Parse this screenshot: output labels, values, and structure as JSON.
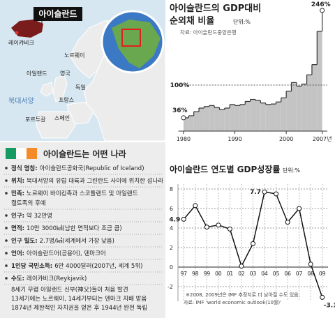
{
  "map": {
    "title": "아이슬란드",
    "labels": [
      "레이캬비크",
      "노르웨이",
      "아일랜드",
      "영국",
      "독일",
      "북대서양",
      "프랑스",
      "포르투갈",
      "스페인"
    ]
  },
  "info": {
    "heading": "아이슬란드는 어떤 나라",
    "items": [
      {
        "label": "정식 명칭:",
        "text": [
          "아이슬란드공화국(Republic of Iceland)"
        ]
      },
      {
        "label": "위치:",
        "text": [
          "북대서양의 유럽 대륙과 그린란드 사이에 위치한 섬나라"
        ]
      },
      {
        "label": "민족:",
        "text": [
          "노르웨이 바이킹족과 스코틀랜드 및 아일랜드",
          "켈트족의 후예"
        ]
      },
      {
        "label": "인구:",
        "text": [
          "약 32만명"
        ]
      },
      {
        "label": "면적:",
        "text": [
          "10만 3000㎢(남한 면적보다 조금 큼)"
        ]
      },
      {
        "label": "인구 밀도:",
        "text": [
          "2.7명/㎢(세계에서 가장 낮음)"
        ]
      },
      {
        "label": "언어:",
        "text": [
          "아이슬란드어(공용어), 덴마크어"
        ]
      },
      {
        "label": "1인당 국민소득:",
        "text": [
          "6만 4000달러(2007년, 세계 5위)"
        ]
      },
      {
        "label": "수도:",
        "text": [
          "레이캬비크(Reykjavik)"
        ]
      }
    ],
    "history": [
      "8세기 무렵 아일랜드 신부(神父)들이 처음 발견",
      "13세기에는 노르웨이, 14세기부터는 덴마크 지배 받음",
      "1874년 제한적인 자치권을 얻은 후 1944년 완전 독립"
    ]
  },
  "chart_data": [
    {
      "type": "step-area",
      "title": [
        "아이슬란드의 GDP대비",
        "순외채 비율"
      ],
      "unit": "단위:%",
      "source": "자료: 아이슬란드중앙은행",
      "x": [
        1980,
        1981,
        1982,
        1983,
        1984,
        1985,
        1986,
        1987,
        1988,
        1989,
        1990,
        1991,
        1992,
        1993,
        1994,
        1995,
        1996,
        1997,
        1998,
        1999,
        2000,
        2001,
        2002,
        2003,
        2004,
        2005,
        2006,
        2007
      ],
      "values": [
        36,
        40,
        48,
        55,
        58,
        60,
        56,
        52,
        55,
        62,
        60,
        62,
        68,
        72,
        70,
        65,
        62,
        63,
        67,
        75,
        88,
        105,
        98,
        102,
        120,
        140,
        205,
        246
      ],
      "color": "#c4c4c4",
      "xlim": [
        1979,
        2008
      ],
      "xticks": [
        1980,
        1990,
        2000,
        {
          "value": 2007,
          "label": "2007년"
        }
      ],
      "ylim": [
        10,
        250
      ],
      "annotations": [
        {
          "x": 1980,
          "value": 36,
          "label": "36%"
        },
        {
          "value": 100,
          "label": "100%"
        },
        {
          "x": 2007,
          "value": 246,
          "label": "246%"
        }
      ]
    },
    {
      "type": "line",
      "title": "아이슬란드 연도별 GDP성장률",
      "unit": "단위:%",
      "categories": [
        "97",
        "98",
        "99",
        "00",
        "01",
        "02",
        "03",
        "04",
        "05",
        "06",
        "07",
        "08",
        "09"
      ],
      "values": [
        4.9,
        6.3,
        4.1,
        4.3,
        3.9,
        0.1,
        2.4,
        7.7,
        7.5,
        4.6,
        6.0,
        0.3,
        -3.1
      ],
      "value_labels": [
        "4.9",
        null,
        null,
        null,
        null,
        null,
        null,
        "7.7",
        null,
        null,
        null,
        null,
        "-3.1"
      ],
      "color": "#111111",
      "ylim": [
        -3.5,
        8.5
      ],
      "yticks": [
        8,
        6,
        4,
        2,
        0,
        -2
      ],
      "grid": true,
      "notes": [
        "※2008, 2009년은 IMF 추정치로 더 낮아질 수도 있음.",
        "자료: IMF 'world economic outlook(10월)'"
      ]
    }
  ]
}
